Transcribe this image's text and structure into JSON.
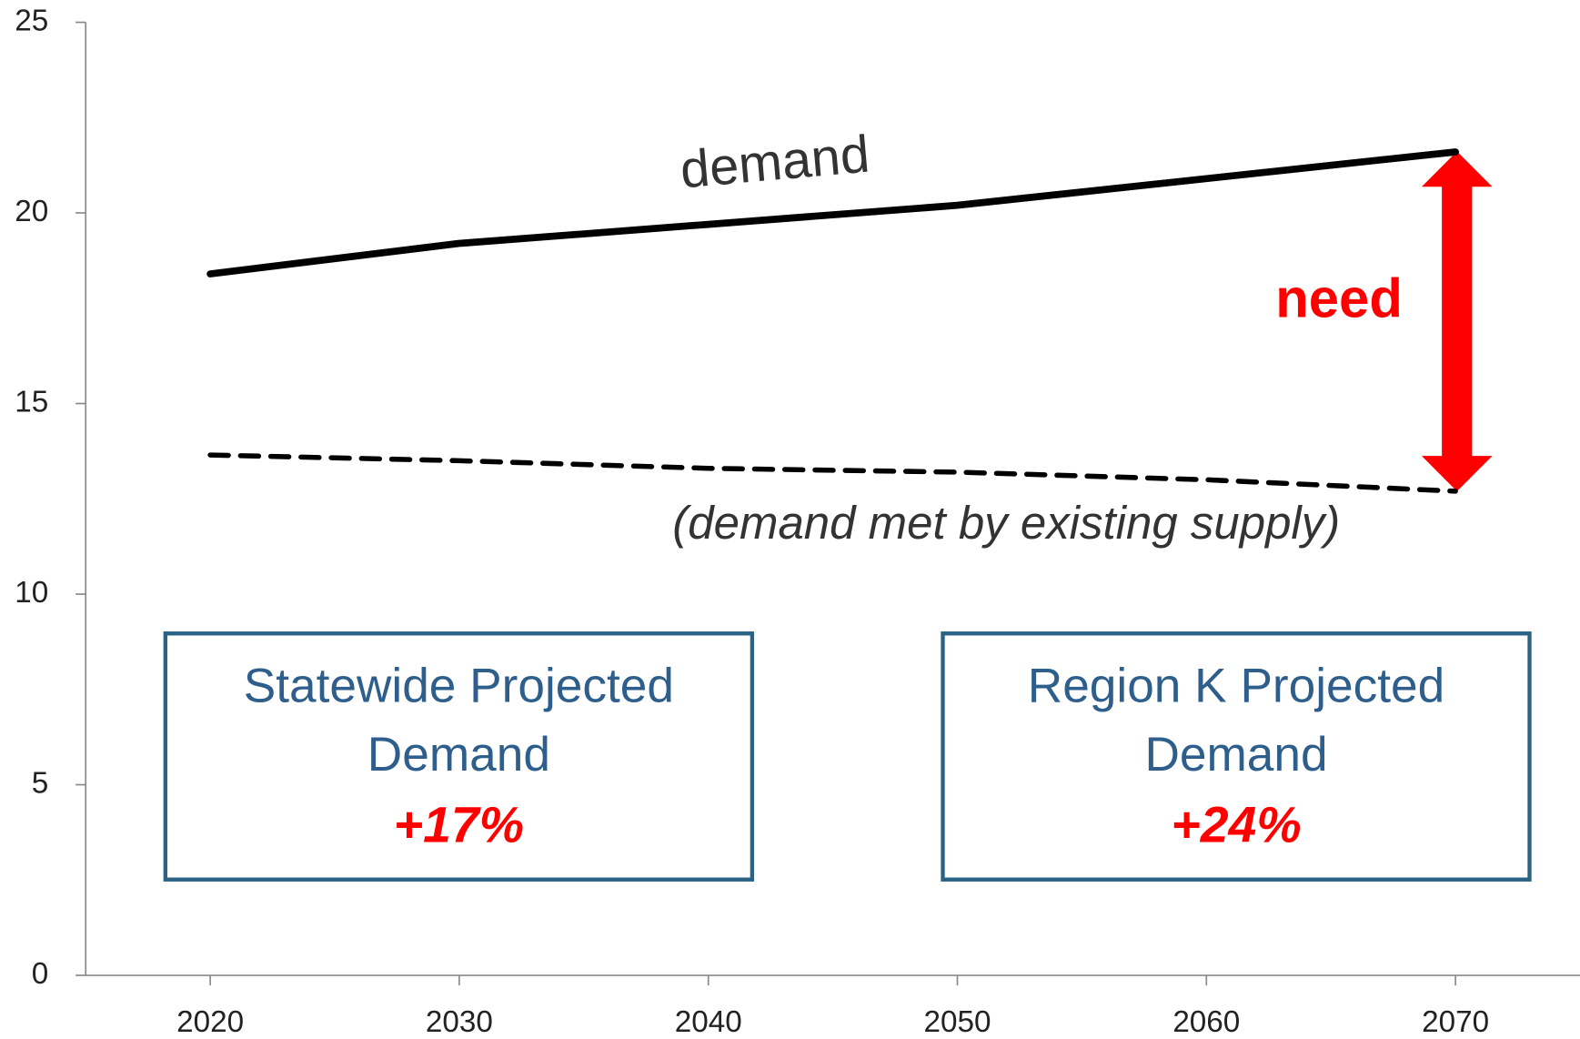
{
  "chart_data": {
    "type": "line",
    "categories": [
      "2020",
      "2030",
      "2040",
      "2050",
      "2060",
      "2070"
    ],
    "series": [
      {
        "color": "#000000",
        "line_style": "solid",
        "values": [
          18.4,
          19.2,
          19.7,
          20.2,
          20.9,
          21.6
        ]
      },
      {
        "color": "#000000",
        "line_style": "dashed",
        "values": [
          13.65,
          13.5,
          13.3,
          13.2,
          13.0,
          12.7
        ]
      }
    ],
    "ylim": [
      0,
      25
    ],
    "yticks": [
      0,
      5,
      10,
      15,
      20,
      25
    ],
    "annotations": {
      "demand": "demand",
      "need": "need",
      "supply": "(demand met by existing supply)",
      "statewide_title": "Statewide Projected Demand",
      "statewide_change": "+17%",
      "region_title": "Region K Projected Demand",
      "region_change": "+24%"
    }
  }
}
